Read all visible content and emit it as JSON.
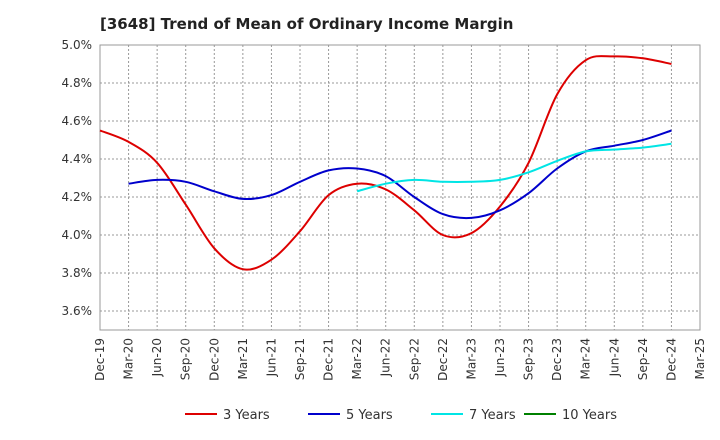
{
  "chart_data": {
    "type": "line",
    "title": "[3648]  Trend of Mean of Ordinary Income Margin",
    "xlabel": "",
    "ylabel": "",
    "ylim": [
      3.5,
      5.0
    ],
    "y_ticks": [
      "5.0%",
      "4.8%",
      "4.6%",
      "4.4%",
      "4.2%",
      "4.0%",
      "3.8%",
      "3.6%"
    ],
    "y_tick_values": [
      5.0,
      4.8,
      4.6,
      4.4,
      4.2,
      4.0,
      3.8,
      3.6
    ],
    "categories": [
      "Dec-19",
      "Mar-20",
      "Jun-20",
      "Sep-20",
      "Dec-20",
      "Mar-21",
      "Jun-21",
      "Sep-21",
      "Dec-21",
      "Mar-22",
      "Jun-22",
      "Sep-22",
      "Dec-22",
      "Mar-23",
      "Jun-23",
      "Sep-23",
      "Dec-23",
      "Mar-24",
      "Jun-24",
      "Sep-24",
      "Dec-24",
      "Mar-25"
    ],
    "grid": true,
    "legend_position": "bottom",
    "series": [
      {
        "name": "3 Years",
        "color": "#dd0000",
        "values": [
          4.55,
          4.49,
          4.38,
          4.16,
          3.93,
          3.82,
          3.87,
          4.02,
          4.21,
          4.27,
          4.24,
          4.13,
          4.0,
          4.01,
          4.15,
          4.38,
          4.74,
          4.92,
          4.94,
          4.93,
          4.9,
          null
        ]
      },
      {
        "name": "5 Years",
        "color": "#0000cc",
        "values": [
          null,
          4.27,
          4.29,
          4.28,
          4.23,
          4.19,
          4.21,
          4.28,
          4.34,
          4.35,
          4.31,
          4.2,
          4.11,
          4.09,
          4.13,
          4.22,
          4.35,
          4.44,
          4.47,
          4.5,
          4.55,
          null
        ]
      },
      {
        "name": "7 Years",
        "color": "#00e5e5",
        "values": [
          null,
          null,
          null,
          null,
          null,
          null,
          null,
          null,
          null,
          4.23,
          4.27,
          4.29,
          4.28,
          4.28,
          4.29,
          4.33,
          4.39,
          4.44,
          4.45,
          4.46,
          4.48,
          null
        ]
      },
      {
        "name": "10 Years",
        "color": "#008000",
        "values": [
          null,
          null,
          null,
          null,
          null,
          null,
          null,
          null,
          null,
          null,
          null,
          null,
          null,
          null,
          null,
          null,
          null,
          null,
          null,
          null,
          null,
          null
        ]
      }
    ]
  }
}
